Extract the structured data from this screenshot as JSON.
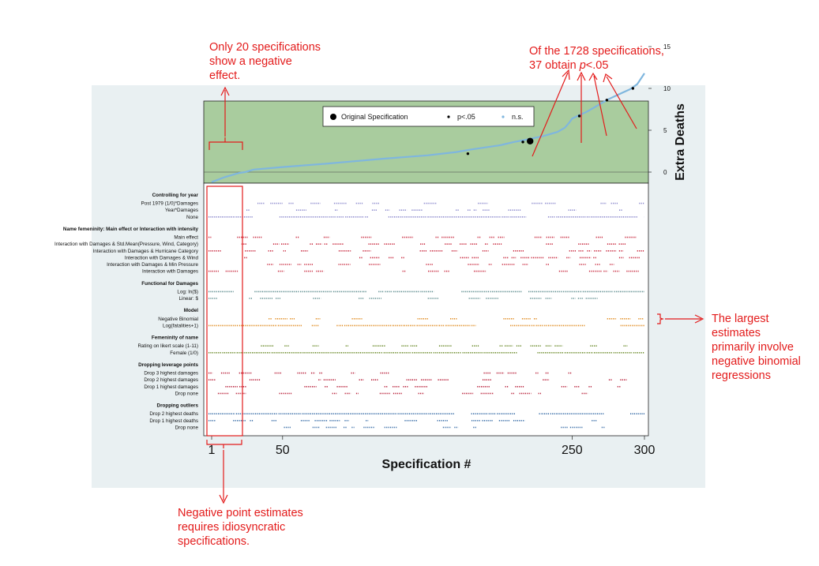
{
  "annotations": {
    "top_left": [
      "Only 20 specifications",
      "show a negative",
      "effect."
    ],
    "top_right_line1": "Of the 1728 specifications,",
    "top_right_line2_pre": "37 obtain ",
    "top_right_line2_p": "p",
    "top_right_line2_post": "<.05",
    "right": [
      "The largest",
      "estimates",
      "primarily involve",
      "negative binomial",
      "regressions"
    ],
    "bottom": [
      "Negative point estimates",
      "requires idiosyncratic",
      "specifications."
    ]
  },
  "colors": {
    "panel_bg": "#e9f0f2",
    "top_bg": "#a9cc9e",
    "curve": "#7fb6de",
    "annotation": "#e31b1b",
    "purple": "#8a88cc",
    "red": "#c8283e",
    "teal": "#5a8a8c",
    "orange": "#e08a1e",
    "olive": "#6b8a2a",
    "darkred": "#b8203a",
    "blue": "#3a6ea8"
  },
  "chart_data": {
    "type": "scatter",
    "title": "",
    "xlabel": "Specification #",
    "ylabel": "Extra Deaths",
    "x_ticks": [
      "1",
      "50",
      "250",
      "300"
    ],
    "y_ticks": [
      "0",
      "5",
      "10",
      "15"
    ],
    "xlim": [
      1,
      300
    ],
    "ylim": [
      -2,
      16
    ],
    "legend": {
      "placement": "top-center",
      "items": [
        "Original Specification",
        "p<.05",
        "n.s."
      ]
    },
    "series": [
      {
        "name": "n.s.",
        "x": [
          1,
          10,
          20,
          24,
          30,
          50,
          80,
          100,
          120,
          150,
          170,
          180,
          200,
          210,
          219,
          230,
          240,
          245,
          248,
          250,
          255,
          260,
          265,
          270,
          275,
          280,
          285,
          290,
          295,
          300
        ],
        "y": [
          -1.2,
          -0.6,
          -0.1,
          0.0,
          0.3,
          0.6,
          1.0,
          1.3,
          1.6,
          2.0,
          2.4,
          2.7,
          3.2,
          3.6,
          3.9,
          4.3,
          4.8,
          5.3,
          5.9,
          6.4,
          6.8,
          7.2,
          7.7,
          8.2,
          8.7,
          9.1,
          9.5,
          9.9,
          10.5,
          11.8
        ]
      },
      {
        "name": "p<.05",
        "x": [
          178,
          216,
          255,
          274,
          292
        ],
        "y": [
          2.2,
          3.6,
          6.7,
          8.6,
          10.0
        ]
      },
      {
        "name": "Original Specification",
        "x": [
          221
        ],
        "y": [
          3.7
        ]
      }
    ],
    "specification_rows": [
      {
        "group": "Controlling for year",
        "rows": [
          "Post 1979 (1/0)*Damages",
          "Year*Damages",
          "None"
        ]
      },
      {
        "group": "Name femeninity: Main effect or Interaction with intensity",
        "rows": [
          "Main effect",
          "Interaction with Damages & Std.Mean(Pressure, Wind, Category)",
          "Interaction with Damages & Hurricane Category",
          "Interaction with Damages & Wind",
          "Interaction with Damages & Min Pressure",
          "Interaction with Damages"
        ]
      },
      {
        "group": "Functional for Damages",
        "rows": [
          "Log: ln($)",
          "Linear: $"
        ]
      },
      {
        "group": "Model",
        "rows": [
          "Negative Binomial",
          "Log(fatalities+1)"
        ]
      },
      {
        "group": "Femeninity of name",
        "rows": [
          "Rating on likert scale (1-11)",
          "Female (1/0)"
        ]
      },
      {
        "group": "Dropping leverage points",
        "rows": [
          "Drop 3 highest damages",
          "Drop 2 highest damages",
          "Drop 1 highest damages",
          "Drop none"
        ]
      },
      {
        "group": "Dropping outliers",
        "rows": [
          "Drop 2 highest deaths",
          "Drop 1 highest deaths",
          "Drop none"
        ]
      }
    ]
  }
}
